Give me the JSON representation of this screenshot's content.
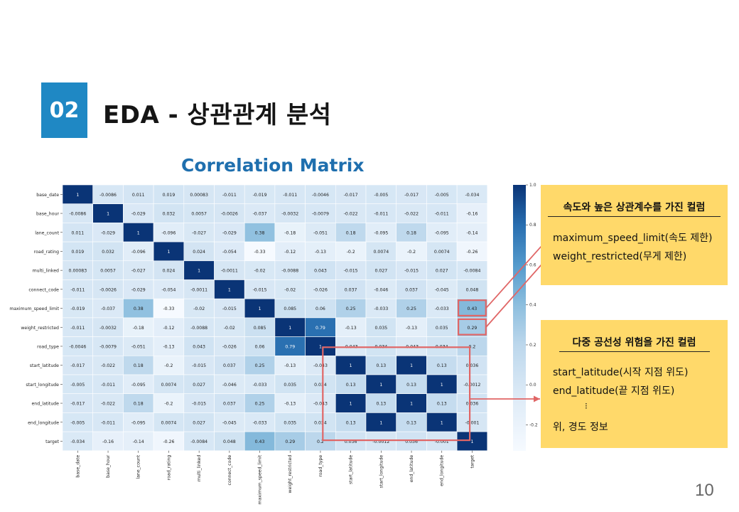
{
  "slide": {
    "section_number": "02",
    "title": "EDA - 상관관계 분석",
    "chart_title": "Correlation Matrix",
    "page_number": "10"
  },
  "callout_speed": {
    "heading": "속도와 높은 상관계수를 가진 컬럼",
    "lines": [
      "maximum_speed_limit(속도 제한)",
      "weight_restricted(무게 제한)"
    ]
  },
  "callout_multi": {
    "heading": "다중 공선성 위험을 가진 컬럼",
    "lines": [
      "start_latitude(시작 지점 위도)",
      "end_latitude(끝 지점 위도)",
      "⁝",
      "위, 경도 정보"
    ]
  },
  "colors": {
    "accent": "#1f88c4",
    "title_blue": "#1f6fae",
    "callout_bg": "#ffd96a",
    "highlight_red": "#e06666"
  },
  "chart_data": {
    "type": "heatmap",
    "title": "Correlation Matrix",
    "labels": [
      "base_date",
      "base_hour",
      "lane_count",
      "road_rating",
      "multi_linked",
      "connect_code",
      "maximum_speed_limit",
      "weight_restricted",
      "road_type",
      "start_latitude",
      "start_longitude",
      "end_latitude",
      "end_longitude",
      "target"
    ],
    "values": [
      [
        "1",
        "-0.0086",
        "0.011",
        "0.019",
        "0.00083",
        "-0.011",
        "-0.019",
        "-0.011",
        "-0.0046",
        "-0.017",
        "-0.005",
        "-0.017",
        "-0.005",
        "-0.034"
      ],
      [
        "-0.0086",
        "1",
        "-0.029",
        "0.032",
        "0.0057",
        "-0.0026",
        "-0.037",
        "-0.0032",
        "-0.0079",
        "-0.022",
        "-0.011",
        "-0.022",
        "-0.011",
        "-0.16"
      ],
      [
        "0.011",
        "-0.029",
        "1",
        "-0.096",
        "-0.027",
        "-0.029",
        "0.38",
        "-0.18",
        "-0.051",
        "0.18",
        "-0.095",
        "0.18",
        "-0.095",
        "-0.14"
      ],
      [
        "0.019",
        "0.032",
        "-0.096",
        "1",
        "0.024",
        "-0.054",
        "-0.33",
        "-0.12",
        "-0.13",
        "-0.2",
        "0.0074",
        "-0.2",
        "0.0074",
        "-0.26"
      ],
      [
        "0.00083",
        "0.0057",
        "-0.027",
        "0.024",
        "1",
        "-0.0011",
        "-0.02",
        "-0.0088",
        "0.043",
        "-0.015",
        "0.027",
        "-0.015",
        "0.027",
        "-0.0084"
      ],
      [
        "-0.011",
        "-0.0026",
        "-0.029",
        "-0.054",
        "-0.0011",
        "1",
        "-0.015",
        "-0.02",
        "-0.026",
        "0.037",
        "-0.046",
        "0.037",
        "-0.045",
        "0.048"
      ],
      [
        "-0.019",
        "-0.037",
        "0.38",
        "-0.33",
        "-0.02",
        "-0.015",
        "1",
        "0.085",
        "0.06",
        "0.25",
        "-0.033",
        "0.25",
        "-0.033",
        "0.43"
      ],
      [
        "-0.011",
        "-0.0032",
        "-0.18",
        "-0.12",
        "-0.0088",
        "-0.02",
        "0.085",
        "1",
        "0.79",
        "-0.13",
        "0.035",
        "-0.13",
        "0.035",
        "0.29"
      ],
      [
        "-0.0046",
        "-0.0079",
        "-0.051",
        "-0.13",
        "0.043",
        "-0.026",
        "0.06",
        "0.79",
        "1",
        "-0.043",
        "0.034",
        "-0.043",
        "0.034",
        "0.2"
      ],
      [
        "-0.017",
        "-0.022",
        "0.18",
        "-0.2",
        "-0.015",
        "0.037",
        "0.25",
        "-0.13",
        "-0.043",
        "1",
        "0.13",
        "1",
        "0.13",
        "0.036"
      ],
      [
        "-0.005",
        "-0.011",
        "-0.095",
        "0.0074",
        "0.027",
        "-0.046",
        "-0.033",
        "0.035",
        "0.034",
        "0.13",
        "1",
        "0.13",
        "1",
        "-0.0012"
      ],
      [
        "-0.017",
        "-0.022",
        "0.18",
        "-0.2",
        "-0.015",
        "0.037",
        "0.25",
        "-0.13",
        "-0.043",
        "1",
        "0.13",
        "1",
        "0.13",
        "0.036"
      ],
      [
        "-0.005",
        "-0.011",
        "-0.095",
        "0.0074",
        "0.027",
        "-0.045",
        "-0.033",
        "0.035",
        "0.034",
        "0.13",
        "1",
        "0.13",
        "1",
        "-0.001"
      ],
      [
        "-0.034",
        "-0.16",
        "-0.14",
        "-0.26",
        "-0.0084",
        "0.048",
        "0.43",
        "0.29",
        "0.2",
        "0.036",
        "-0.0012",
        "0.036",
        "-0.001",
        "1"
      ]
    ],
    "colorbar_ticks": [
      "1.0",
      "0.8",
      "0.6",
      "0.4",
      "0.2",
      "0.0",
      "-0.2"
    ],
    "colorbar_range": [
      -0.33,
      1.0
    ],
    "highlighted_cells": [
      [
        6,
        13
      ],
      [
        7,
        13
      ]
    ],
    "highlighted_block": {
      "rows": [
        9,
        12
      ],
      "cols": [
        9,
        12
      ]
    }
  }
}
